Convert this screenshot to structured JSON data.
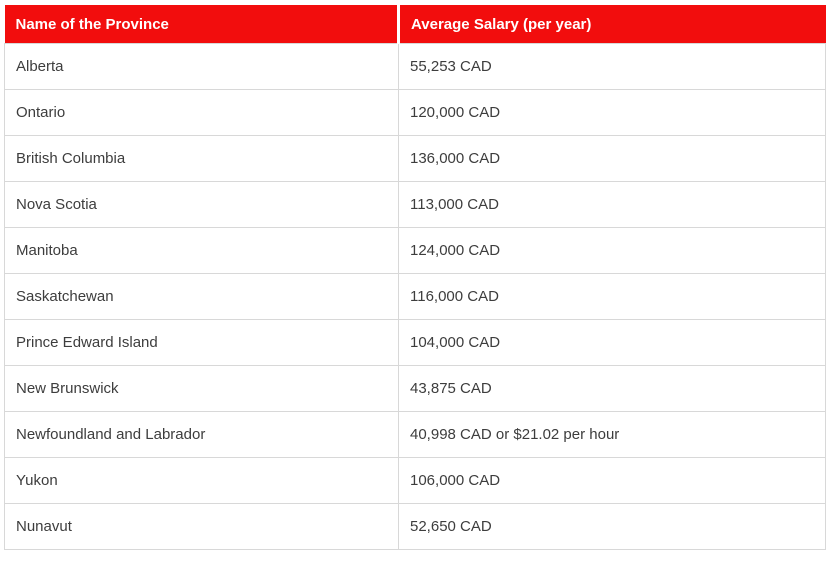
{
  "colors": {
    "header_background": "#f20d0d",
    "header_text": "#ffffff",
    "body_text": "#3d3d3d",
    "cell_border": "#d8d8d8",
    "row_background": "#ffffff",
    "page_background": "#ffffff"
  },
  "table": {
    "columns": [
      "Name of the Province",
      "Average Salary (per year)"
    ],
    "rows": [
      {
        "province": "Alberta",
        "salary": "55,253 CAD"
      },
      {
        "province": "Ontario",
        "salary": "120,000 CAD"
      },
      {
        "province": "British Columbia",
        "salary": "136,000 CAD"
      },
      {
        "province": "Nova Scotia",
        "salary": "113,000 CAD"
      },
      {
        "province": "Manitoba",
        "salary": "124,000 CAD"
      },
      {
        "province": "Saskatchewan",
        "salary": "116,000 CAD"
      },
      {
        "province": "Prince Edward Island",
        "salary": "104,000 CAD"
      },
      {
        "province": "New Brunswick",
        "salary": "43,875 CAD"
      },
      {
        "province": "Newfoundland and Labrador",
        "salary": "40,998 CAD or $21.02 per hour"
      },
      {
        "province": "Yukon",
        "salary": "106,000 CAD"
      },
      {
        "province": "Nunavut",
        "salary": "52,650 CAD"
      }
    ]
  },
  "chart_data": {
    "type": "table",
    "title": "",
    "columns": [
      "Name of the Province",
      "Average Salary (per year)"
    ],
    "rows": [
      [
        "Alberta",
        "55,253 CAD"
      ],
      [
        "Ontario",
        "120,000 CAD"
      ],
      [
        "British Columbia",
        "136,000 CAD"
      ],
      [
        "Nova Scotia",
        "113,000 CAD"
      ],
      [
        "Manitoba",
        "124,000 CAD"
      ],
      [
        "Saskatchewan",
        "116,000 CAD"
      ],
      [
        "Prince Edward Island",
        "104,000 CAD"
      ],
      [
        "New Brunswick",
        "43,875 CAD"
      ],
      [
        "Newfoundland and Labrador",
        "40,998 CAD or $21.02 per hour"
      ],
      [
        "Yukon",
        "106,000 CAD"
      ],
      [
        "Nunavut",
        "52,650 CAD"
      ]
    ]
  }
}
